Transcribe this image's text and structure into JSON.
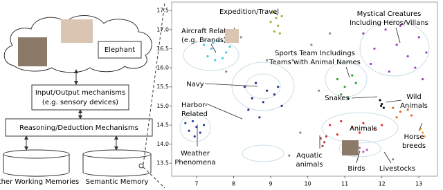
{
  "diagram": {
    "cloud_item": "Elephant",
    "io_box": [
      "Input/Output mechanisms",
      "(e.g. sensory devices)"
    ],
    "reasoning_box": "Reasoning/Deduction Mechanisms",
    "memories": [
      "Other Working Memories",
      "Semantic Memory"
    ]
  },
  "chart_data": {
    "type": "scatter",
    "xlim": [
      6.33,
      13.5
    ],
    "ylim": [
      13.16,
      17.72
    ],
    "xticks": [
      7,
      8,
      9,
      10,
      11,
      12,
      13
    ],
    "yticks": [
      13.5,
      {
        "value": 14,
        "label": "14.0"
      },
      14.5,
      {
        "value": 15,
        "label": "15.0"
      },
      15.5,
      {
        "value": 16,
        "label": "16.0"
      },
      16.5,
      {
        "value": 17,
        "label": "17.0"
      },
      17.5
    ],
    "series": [
      {
        "color": "#a0b030",
        "x": [
          9.05,
          9.15,
          9.2,
          9.3,
          9.1,
          9.25,
          9.0
        ],
        "values": [
          17.45,
          17.3,
          17.1,
          17.35,
          16.95,
          16.9,
          17.2
        ]
      },
      {
        "color": "#40c8e8",
        "x": [
          7.2,
          7.4,
          7.6,
          7.8,
          7.3,
          7.5,
          7.9,
          7.7,
          7.45
        ],
        "values": [
          16.6,
          16.5,
          16.7,
          16.4,
          16.3,
          16.2,
          16.55,
          16.25,
          16.65
        ]
      },
      {
        "color": "#9a3cc8",
        "x": [
          11.5,
          11.8,
          12.1,
          12.4,
          12.7,
          13.0,
          13.2,
          11.7,
          12.2,
          12.9,
          12.5,
          13.1
        ],
        "values": [
          16.9,
          16.5,
          17.0,
          16.6,
          16.3,
          16.8,
          16.4,
          16.1,
          15.9,
          16.0,
          17.1,
          15.7
        ]
      },
      {
        "color": "#2e9e2e",
        "x": [
          10.8,
          11.0,
          11.2,
          10.9,
          11.1,
          11.3
        ],
        "values": [
          15.7,
          15.5,
          15.8,
          15.3,
          15.2,
          15.6
        ]
      },
      {
        "color": "#2a2a8c",
        "x": [
          8.3,
          8.6,
          8.9,
          9.2,
          8.5,
          8.8,
          9.1,
          8.4,
          8.7,
          9.3
        ],
        "values": [
          15.5,
          15.6,
          15.4,
          15.5,
          15.2,
          15.1,
          15.3,
          14.9,
          14.7,
          15.0
        ]
      },
      {
        "color": "#1f3fa0",
        "x": [
          6.7,
          6.9,
          7.0,
          7.2,
          6.8,
          7.1,
          6.95
        ],
        "values": [
          14.55,
          14.6,
          14.45,
          14.5,
          14.35,
          14.3,
          14.2
        ]
      },
      {
        "color": "#111111",
        "x": [
          11.95,
          12.0,
          12.05,
          11.98
        ],
        "values": [
          15.15,
          15.05,
          14.95,
          15.0
        ]
      },
      {
        "color": "#e06a2a",
        "x": [
          12.3,
          12.5,
          12.7,
          12.4,
          12.8
        ],
        "values": [
          14.95,
          14.85,
          14.9,
          14.7,
          14.75
        ]
      },
      {
        "color": "#e02a2a",
        "x": [
          10.6,
          10.9,
          11.2,
          11.5,
          11.8,
          12.0,
          10.8,
          11.4
        ],
        "values": [
          14.5,
          14.6,
          14.45,
          14.55,
          14.4,
          14.5,
          14.25,
          14.3
        ]
      },
      {
        "color": "#f0a030",
        "x": [
          13.05,
          13.1,
          13.15
        ],
        "values": [
          14.4,
          14.3,
          14.2
        ]
      },
      {
        "color": "#c060c0",
        "x": [
          11.4,
          11.6,
          11.5
        ],
        "values": [
          13.9,
          13.85,
          13.8
        ]
      },
      {
        "color": "#b03a3a",
        "x": [
          10.35,
          10.45,
          10.4,
          10.5
        ],
        "values": [
          14.15,
          14.05,
          13.95,
          14.2
        ]
      },
      {
        "color": "#9a8878",
        "x": [
          7.8,
          8.2,
          9.6,
          10.1,
          10.3,
          9.8,
          10.6,
          12.3,
          8.9,
          9.5
        ],
        "values": [
          15.9,
          16.8,
          16.2,
          16.6,
          15.4,
          14.3,
          16.9,
          13.6,
          16.2,
          13.7
        ]
      }
    ],
    "annotations": [
      {
        "text": [
          "Expedition/Travel"
        ]
      },
      {
        "text": [
          "Aircraft Related",
          "(e.g. Brands)"
        ]
      },
      {
        "text": [
          "Mystical Creatures",
          "Including Heros/Villans"
        ]
      },
      {
        "text": [
          "Sports Team Includings",
          "Teams with Animal Names"
        ]
      },
      {
        "text": [
          "Navy"
        ]
      },
      {
        "text": [
          "Harbor-",
          "Related"
        ]
      },
      {
        "text": [
          "Snakes"
        ]
      },
      {
        "text": [
          "Wild",
          "Animals"
        ]
      },
      {
        "text": [
          "Animals"
        ]
      },
      {
        "text": [
          "Horse",
          "breeds"
        ]
      },
      {
        "text": [
          "Weather",
          "Phenomena"
        ]
      },
      {
        "text": [
          "Aquatic",
          "animals"
        ]
      },
      {
        "text": [
          "Birds"
        ]
      },
      {
        "text": [
          "Livestocks"
        ]
      }
    ]
  }
}
